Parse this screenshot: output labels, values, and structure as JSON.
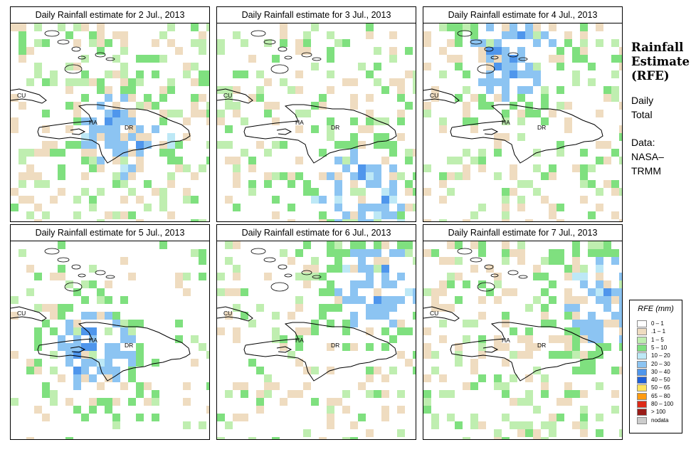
{
  "panels": [
    {
      "title": "Daily Rainfall estimate for  2 Jul., 2013",
      "seed": 11,
      "wet": 0.35,
      "focus": "central"
    },
    {
      "title": "Daily Rainfall estimate for  3 Jul., 2013",
      "seed": 23,
      "wet": 0.25,
      "focus": "south"
    },
    {
      "title": "Daily Rainfall estimate for  4 Jul., 2013",
      "seed": 37,
      "wet": 0.28,
      "focus": "north"
    },
    {
      "title": "Daily Rainfall estimate for  5 Jul., 2013",
      "seed": 41,
      "wet": 0.15,
      "focus": "haiti"
    },
    {
      "title": "Daily Rainfall estimate for  6 Jul., 2013",
      "seed": 53,
      "wet": 0.22,
      "focus": "northeast"
    },
    {
      "title": "Daily Rainfall estimate for  7 Jul., 2013",
      "seed": 67,
      "wet": 0.3,
      "focus": "east"
    }
  ],
  "map_labels": {
    "cuba": "CU",
    "haiti": "HA",
    "dr": "DR"
  },
  "side": {
    "title_lines": [
      "Rainfall",
      "Estimate",
      "(RFE)"
    ],
    "daily_lines": [
      "Daily",
      "Total"
    ],
    "data_lines": [
      "Data:",
      "NASA–",
      "TRMM"
    ]
  },
  "legend": {
    "title": "RFE (mm)",
    "items": [
      {
        "label": "0 – 1",
        "color": "#ffffff"
      },
      {
        "label": ".1 – 1",
        "color": "#efdcc0"
      },
      {
        "label": "1 – 5",
        "color": "#bfeeb0"
      },
      {
        "label": "5 – 10",
        "color": "#7fe07f"
      },
      {
        "label": "10 – 20",
        "color": "#bde8f6"
      },
      {
        "label": "20 – 30",
        "color": "#8cc4f2"
      },
      {
        "label": "30 – 40",
        "color": "#4f96ec"
      },
      {
        "label": "40 – 50",
        "color": "#1f5fd8"
      },
      {
        "label": "50 – 65",
        "color": "#ffe35e"
      },
      {
        "label": "65 – 80",
        "color": "#ff9a10"
      },
      {
        "label": "80 – 100",
        "color": "#dd2a18"
      },
      {
        "label": "> 100",
        "color": "#9a1c18"
      },
      {
        "label": "nodata",
        "color": "#cccccc"
      }
    ]
  }
}
